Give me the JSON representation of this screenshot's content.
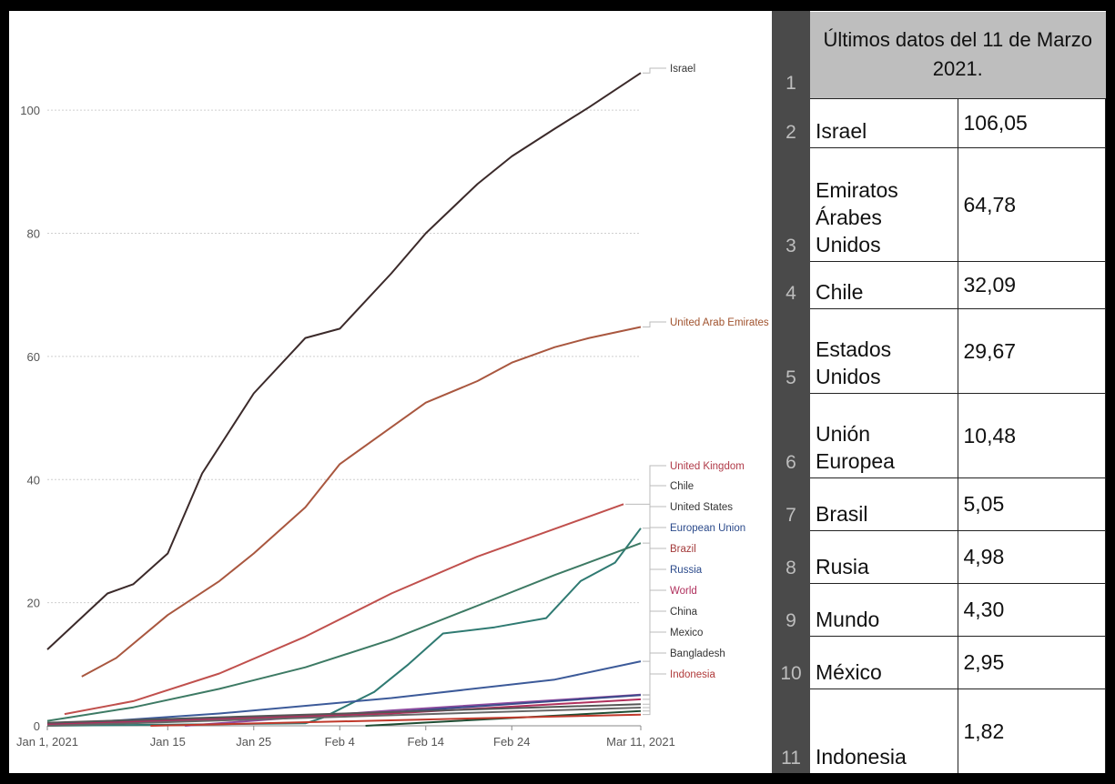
{
  "chart_data": {
    "type": "line",
    "x_ticks": [
      "Jan 1, 2021",
      "Jan 15",
      "Jan 25",
      "Feb 4",
      "Feb 14",
      "Feb 24",
      "Mar 11, 2021"
    ],
    "y_ticks": [
      "0",
      "20",
      "40",
      "60",
      "80",
      "100"
    ],
    "ylim": [
      0,
      108
    ],
    "x_range": [
      "2021-01-01",
      "2021-03-11"
    ],
    "grid": "horizontal dotted",
    "series": [
      {
        "name": "Israel",
        "color": "#3b2a2a",
        "label_color": "#333333",
        "x": [
          "2021-01-01",
          "2021-01-08",
          "2021-01-11",
          "2021-01-15",
          "2021-01-19",
          "2021-01-25",
          "2021-01-31",
          "2021-02-04",
          "2021-02-10",
          "2021-02-14",
          "2021-02-20",
          "2021-02-24",
          "2021-03-01",
          "2021-03-05",
          "2021-03-11"
        ],
        "values": [
          12.4,
          21.5,
          23,
          28,
          41,
          54,
          63,
          64.5,
          73.5,
          80,
          88,
          92.5,
          97,
          100.5,
          106.05
        ]
      },
      {
        "name": "United Arab Emirates",
        "color": "#a9573f",
        "label_color": "#a0522d",
        "x": [
          "2021-01-05",
          "2021-01-09",
          "2021-01-15",
          "2021-01-21",
          "2021-01-25",
          "2021-01-31",
          "2021-02-04",
          "2021-02-10",
          "2021-02-14",
          "2021-02-20",
          "2021-02-24",
          "2021-03-01",
          "2021-03-05",
          "2021-03-11"
        ],
        "values": [
          8,
          11,
          18,
          23.5,
          28,
          35.5,
          42.5,
          48.5,
          52.5,
          56,
          59,
          61.5,
          63,
          64.78
        ]
      },
      {
        "name": "United Kingdom",
        "color": "#c0504d",
        "label_color": "#b03a48",
        "x": [
          "2021-01-03",
          "2021-01-11",
          "2021-01-21",
          "2021-01-31",
          "2021-02-10",
          "2021-02-20",
          "2021-02-28",
          "2021-03-09"
        ],
        "values": [
          1.9,
          4,
          8.5,
          14.5,
          21.5,
          27.5,
          31.5,
          36
        ]
      },
      {
        "name": "Chile",
        "color": "#2f7a72",
        "label_color": "#333333",
        "x": [
          "2021-01-01",
          "2021-01-31",
          "2021-02-02",
          "2021-02-08",
          "2021-02-12",
          "2021-02-16",
          "2021-02-22",
          "2021-02-28",
          "2021-03-04",
          "2021-03-08",
          "2021-03-11"
        ],
        "values": [
          0,
          0.4,
          1.3,
          5.5,
          10,
          15,
          16,
          17.5,
          23.5,
          26.5,
          32.09
        ]
      },
      {
        "name": "United States",
        "color": "#3d7a64",
        "label_color": "#333333",
        "x": [
          "2021-01-01",
          "2021-01-11",
          "2021-01-21",
          "2021-01-31",
          "2021-02-10",
          "2021-02-20",
          "2021-03-01",
          "2021-03-11"
        ],
        "values": [
          0.8,
          3,
          6,
          9.5,
          14,
          19.5,
          24.5,
          29.67
        ]
      },
      {
        "name": "European Union",
        "color": "#3c5a99",
        "label_color": "#2b4a8b",
        "x": [
          "2021-01-01",
          "2021-01-21",
          "2021-02-10",
          "2021-03-01",
          "2021-03-11"
        ],
        "values": [
          0.1,
          2,
          4.5,
          7.5,
          10.48
        ]
      },
      {
        "name": "Brazil",
        "color": "#8e4b9e",
        "label_color": "#a33a3a",
        "x": [
          "2021-01-17",
          "2021-02-10",
          "2021-03-11"
        ],
        "values": [
          0,
          2.5,
          5.05
        ]
      },
      {
        "name": "Russia",
        "color": "#3b4a8a",
        "label_color": "#2b4a8b",
        "x": [
          "2021-01-01",
          "2021-02-10",
          "2021-03-11"
        ],
        "values": [
          0.3,
          2.2,
          4.98
        ]
      },
      {
        "name": "World",
        "color": "#b0305d",
        "label_color": "#b0305d",
        "x": [
          "2021-01-01",
          "2021-02-10",
          "2021-03-11"
        ],
        "values": [
          0.2,
          2,
          4.3
        ]
      },
      {
        "name": "China",
        "color": "#555555",
        "label_color": "#333333",
        "x": [
          "2021-01-01",
          "2021-03-11"
        ],
        "values": [
          0.5,
          3.5
        ]
      },
      {
        "name": "Mexico",
        "color": "#666666",
        "label_color": "#333333",
        "x": [
          "2021-01-01",
          "2021-03-11"
        ],
        "values": [
          0,
          2.95
        ]
      },
      {
        "name": "Bangladesh",
        "color": "#1f4d33",
        "label_color": "#333333",
        "x": [
          "2021-02-07",
          "2021-03-11"
        ],
        "values": [
          0,
          2.4
        ]
      },
      {
        "name": "Indonesia",
        "color": "#c0392b",
        "label_color": "#b03a3a",
        "x": [
          "2021-01-13",
          "2021-03-11"
        ],
        "values": [
          0,
          1.82
        ]
      }
    ]
  },
  "table": {
    "header_index": "1",
    "header": "Últimos datos del 11 de Marzo 2021.",
    "rows": [
      {
        "index": "2",
        "country": "Israel",
        "value": "106,05"
      },
      {
        "index": "3",
        "country": "Emiratos Árabes Unidos",
        "value": "64,78"
      },
      {
        "index": "4",
        "country": "Chile",
        "value": "32,09"
      },
      {
        "index": "5",
        "country": "Estados Unidos",
        "value": "29,67"
      },
      {
        "index": "6",
        "country": "Unión Europea",
        "value": "10,48"
      },
      {
        "index": "7",
        "country": "Brasil",
        "value": "5,05"
      },
      {
        "index": "8",
        "country": "Rusia",
        "value": "4,98"
      },
      {
        "index": "9",
        "country": "Mundo",
        "value": "4,30"
      },
      {
        "index": "10",
        "country": "México",
        "value": "2,95"
      },
      {
        "index": "11",
        "country": "Indonesia",
        "value": "1,82"
      }
    ]
  }
}
